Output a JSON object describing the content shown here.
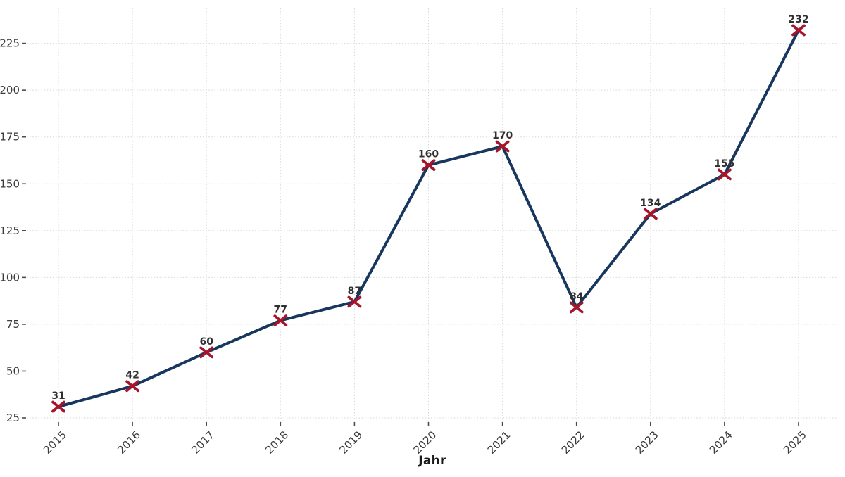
{
  "chart_data": {
    "type": "line",
    "title": "",
    "xlabel": "Jahr",
    "ylabel": "",
    "categories": [
      "2015",
      "2016",
      "2017",
      "2018",
      "2019",
      "2020",
      "2021",
      "2022",
      "2023",
      "2024",
      "2025"
    ],
    "values": [
      31,
      42,
      60,
      77,
      87,
      160,
      170,
      84,
      134,
      155,
      232
    ],
    "point_labels": [
      "31",
      "42",
      "60",
      "77",
      "87",
      "160",
      "170",
      "84",
      "134",
      "155",
      "232"
    ],
    "yticks": [
      25,
      50,
      75,
      100,
      125,
      150,
      175,
      200,
      225
    ],
    "ylim": [
      23,
      244
    ],
    "grid": true,
    "grid_style": "dotted",
    "legend_position": "none",
    "marker_shape": "x",
    "x_tick_rotation_deg": 45,
    "colors": {
      "line": "#17375e",
      "marker": "#a6152b",
      "grid": "#d6d6d6",
      "tick": "#4d4d4d",
      "tick_label": "#3b3b3b",
      "point_label": "#2f2f2f",
      "axis_title": "#1a1a1a",
      "background": "#ffffff"
    }
  }
}
